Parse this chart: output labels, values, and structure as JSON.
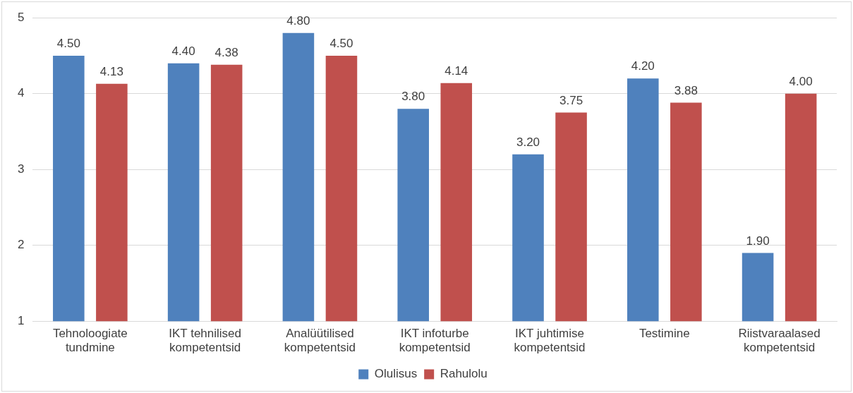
{
  "chart_data": {
    "type": "bar",
    "categories": [
      "Tehnoloogiate tundmine",
      "IKT tehnilised kompetentsid",
      "Analüütilised kompetentsid",
      "IKT infoturbe kompetentsid",
      "IKT juhtimise kompetentsid",
      "Testimine",
      "Riistvaraalased kompetentsid"
    ],
    "series": [
      {
        "name": "Olulisus",
        "color": "#4f81bd",
        "values": [
          4.5,
          4.4,
          4.8,
          3.8,
          3.2,
          4.2,
          1.9
        ],
        "value_labels": [
          "4.50",
          "4.40",
          "4.80",
          "3.80",
          "3.20",
          "4.20",
          "1.90"
        ]
      },
      {
        "name": "Rahulolu",
        "color": "#c0504d",
        "values": [
          4.13,
          4.38,
          4.5,
          4.14,
          3.75,
          3.88,
          4.0
        ],
        "value_labels": [
          "4.13",
          "4.38",
          "4.50",
          "4.14",
          "3.75",
          "3.88",
          "4.00"
        ]
      }
    ],
    "ylim": [
      1,
      5
    ],
    "yticks": [
      1,
      2,
      3,
      4,
      5
    ],
    "grid": "y",
    "legend": "bottom"
  }
}
